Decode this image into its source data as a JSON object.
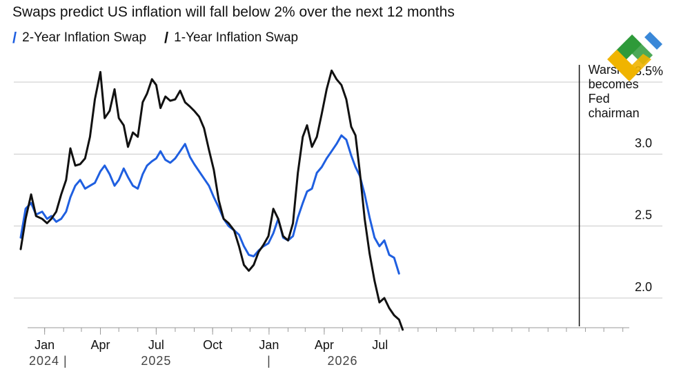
{
  "title": "Swaps predict US inflation will fall below 2% over the next 12 months",
  "legend": [
    {
      "label": "2-Year Inflation Swap",
      "color": "#1f5fe0"
    },
    {
      "label": "1-Year Inflation Swap",
      "color": "#111111"
    }
  ],
  "colors": {
    "two_year": "#1f5fe0",
    "one_year": "#111111",
    "grid": "#c8c8c8",
    "axis": "#9a9a9a"
  },
  "annotation": {
    "lines": [
      "Warsh",
      "becomes",
      "Fed",
      "chairman"
    ],
    "date": "2026-05-22"
  },
  "logo": "brand-logo-icon",
  "chart_data": {
    "type": "line",
    "x_range": [
      "2023-11-23",
      "2026-08-07"
    ],
    "ylim": [
      1.75,
      3.6
    ],
    "yticks": [
      2.0,
      2.5,
      3.0,
      3.5
    ],
    "ytick_labels": [
      "2.0",
      "2.5",
      "3.0",
      "3.5%"
    ],
    "xticks": [
      {
        "date": "2024-01-01",
        "label": "Jan"
      },
      {
        "date": "2024-04-01",
        "label": "Apr"
      },
      {
        "date": "2024-07-01",
        "label": "Jul"
      },
      {
        "date": "2024-10-01",
        "label": "Oct"
      },
      {
        "date": "2025-01-01",
        "label": "Jan"
      },
      {
        "date": "2025-04-01",
        "label": "Apr"
      },
      {
        "date": "2025-07-01",
        "label": "Jul"
      }
    ],
    "year_labels": [
      {
        "date": "2023-11-25",
        "label": "2024 |"
      },
      {
        "date": "2024-07-01",
        "label": "2025"
      },
      {
        "date": "2025-01-01",
        "label": "|"
      },
      {
        "date": "2025-05-01",
        "label": "2026"
      }
    ],
    "grid": true,
    "series": [
      {
        "name": "2-Year Inflation Swap",
        "color": "#1f5fe0",
        "x": [
          "2023-11-23",
          "2023-12-01",
          "2023-12-10",
          "2023-12-18",
          "2023-12-28",
          "2024-01-05",
          "2024-01-12",
          "2024-01-20",
          "2024-01-28",
          "2024-02-05",
          "2024-02-12",
          "2024-02-20",
          "2024-02-28",
          "2024-03-07",
          "2024-03-15",
          "2024-03-23",
          "2024-04-01",
          "2024-04-08",
          "2024-04-16",
          "2024-04-24",
          "2024-05-01",
          "2024-05-09",
          "2024-05-16",
          "2024-05-24",
          "2024-06-01",
          "2024-06-09",
          "2024-06-16",
          "2024-06-24",
          "2024-07-01",
          "2024-07-08",
          "2024-07-16",
          "2024-07-24",
          "2024-08-01",
          "2024-08-09",
          "2024-08-17",
          "2024-08-25",
          "2024-09-01",
          "2024-09-09",
          "2024-09-17",
          "2024-09-25",
          "2024-10-03",
          "2024-10-11",
          "2024-10-19",
          "2024-10-27",
          "2024-11-05",
          "2024-11-13",
          "2024-11-21",
          "2024-11-29",
          "2024-12-07",
          "2024-12-15",
          "2024-12-23",
          "2024-12-31",
          "2025-01-08",
          "2025-01-16",
          "2025-01-24",
          "2025-02-01",
          "2025-02-09",
          "2025-02-17",
          "2025-02-25",
          "2025-03-04",
          "2025-03-12",
          "2025-03-20",
          "2025-03-28",
          "2025-04-05",
          "2025-04-13",
          "2025-04-21",
          "2025-04-29",
          "2025-05-07",
          "2025-05-15",
          "2025-05-22",
          "2025-05-29",
          "2025-06-06",
          "2025-06-14",
          "2025-06-22",
          "2025-06-30",
          "2025-07-08",
          "2025-07-16",
          "2025-07-24",
          "2025-08-01"
        ],
        "y": [
          2.42,
          2.62,
          2.66,
          2.58,
          2.6,
          2.55,
          2.57,
          2.53,
          2.55,
          2.6,
          2.7,
          2.78,
          2.82,
          2.76,
          2.78,
          2.8,
          2.88,
          2.92,
          2.86,
          2.78,
          2.82,
          2.9,
          2.84,
          2.78,
          2.76,
          2.86,
          2.92,
          2.95,
          2.97,
          3.02,
          2.96,
          2.94,
          2.97,
          3.02,
          3.07,
          2.98,
          2.93,
          2.88,
          2.83,
          2.78,
          2.7,
          2.63,
          2.55,
          2.5,
          2.47,
          2.44,
          2.36,
          2.3,
          2.29,
          2.33,
          2.36,
          2.38,
          2.45,
          2.55,
          2.42,
          2.4,
          2.43,
          2.56,
          2.66,
          2.74,
          2.76,
          2.87,
          2.91,
          2.97,
          3.02,
          3.07,
          3.13,
          3.1,
          2.99,
          2.91,
          2.85,
          2.72,
          2.56,
          2.42,
          2.36,
          2.4,
          2.3,
          2.28,
          2.17
        ]
      },
      {
        "name": "1-Year Inflation Swap",
        "color": "#111111",
        "x": [
          "2023-11-23",
          "2023-12-01",
          "2023-12-10",
          "2023-12-18",
          "2023-12-28",
          "2024-01-05",
          "2024-01-12",
          "2024-01-20",
          "2024-01-28",
          "2024-02-05",
          "2024-02-12",
          "2024-02-20",
          "2024-02-28",
          "2024-03-07",
          "2024-03-15",
          "2024-03-23",
          "2024-04-01",
          "2024-04-08",
          "2024-04-16",
          "2024-04-24",
          "2024-05-01",
          "2024-05-09",
          "2024-05-16",
          "2024-05-24",
          "2024-06-01",
          "2024-06-09",
          "2024-06-16",
          "2024-06-24",
          "2024-07-01",
          "2024-07-08",
          "2024-07-16",
          "2024-07-24",
          "2024-08-01",
          "2024-08-09",
          "2024-08-17",
          "2024-08-25",
          "2024-09-01",
          "2024-09-09",
          "2024-09-17",
          "2024-09-25",
          "2024-10-03",
          "2024-10-11",
          "2024-10-19",
          "2024-10-27",
          "2024-11-05",
          "2024-11-13",
          "2024-11-21",
          "2024-11-29",
          "2024-12-07",
          "2024-12-15",
          "2024-12-23",
          "2024-12-31",
          "2025-01-08",
          "2025-01-16",
          "2025-01-24",
          "2025-02-01",
          "2025-02-09",
          "2025-02-17",
          "2025-02-25",
          "2025-03-04",
          "2025-03-12",
          "2025-03-20",
          "2025-03-28",
          "2025-04-05",
          "2025-04-13",
          "2025-04-21",
          "2025-04-29",
          "2025-05-07",
          "2025-05-15",
          "2025-05-22",
          "2025-05-29",
          "2025-06-06",
          "2025-06-14",
          "2025-06-22",
          "2025-06-30",
          "2025-07-08",
          "2025-07-16",
          "2025-07-24",
          "2025-08-01",
          "2025-08-07"
        ],
        "y": [
          2.34,
          2.55,
          2.72,
          2.57,
          2.55,
          2.52,
          2.55,
          2.6,
          2.72,
          2.82,
          3.04,
          2.92,
          2.93,
          2.97,
          3.12,
          3.38,
          3.57,
          3.25,
          3.3,
          3.45,
          3.25,
          3.2,
          3.05,
          3.15,
          3.12,
          3.36,
          3.42,
          3.52,
          3.48,
          3.32,
          3.4,
          3.37,
          3.38,
          3.44,
          3.36,
          3.33,
          3.3,
          3.26,
          3.18,
          3.03,
          2.89,
          2.68,
          2.55,
          2.52,
          2.47,
          2.36,
          2.23,
          2.19,
          2.23,
          2.32,
          2.37,
          2.43,
          2.62,
          2.55,
          2.43,
          2.4,
          2.52,
          2.87,
          3.12,
          3.2,
          3.05,
          3.12,
          3.28,
          3.45,
          3.58,
          3.52,
          3.48,
          3.38,
          3.19,
          3.13,
          2.88,
          2.55,
          2.31,
          2.12,
          1.97,
          2.0,
          1.93,
          1.88,
          1.85,
          1.78
        ]
      }
    ]
  }
}
